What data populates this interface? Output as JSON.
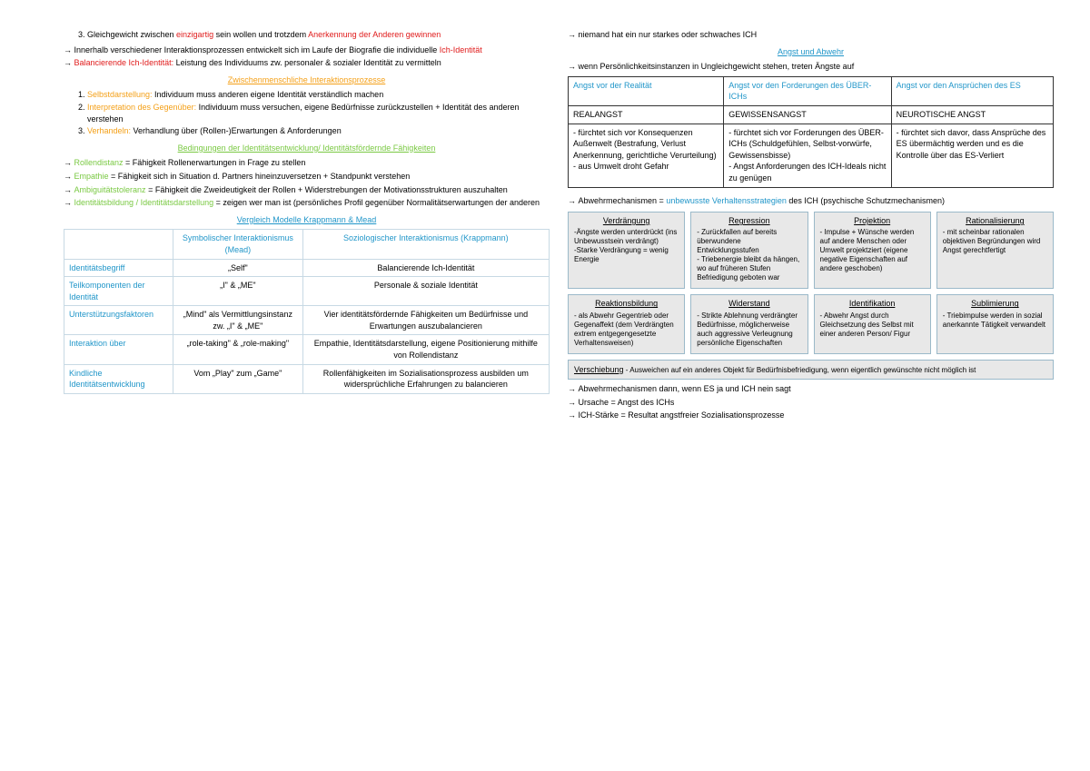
{
  "left": {
    "item3": {
      "pre": "Gleichgewicht zwischen ",
      "red1": "einzigartig",
      "mid": " sein wollen und trotzdem ",
      "red2": "Anerkennung der Anderen gewinnen"
    },
    "a1": {
      "pre": "Innerhalb verschiedener Interaktionsprozessen entwickelt sich im Laufe der Biografie die individuelle ",
      "red": "Ich-Identität"
    },
    "a2": {
      "red": "Balancierende Ich-Identität:",
      "rest": " Leistung des Individuums zw. personaler & sozialer Identität zu vermitteln"
    },
    "h1": "Zwischenmenschliche Interaktionsprozesse",
    "num": [
      {
        "o": "Selbstdarstellung:",
        "t": " Individuum muss anderen eigene Identität verständlich machen"
      },
      {
        "o": "Interpretation des Gegenüber:",
        "t": " Individuum muss versuchen, eigene Bedürfnisse zurückzustellen + Identität des anderen verstehen"
      },
      {
        "o": "Verhandeln:",
        "t": " Verhandlung über (Rollen-)Erwartungen & Anforderungen"
      }
    ],
    "h2": "Bedingungen der Identitätsentwicklung/ Identitätsfördernde Fähigkeiten",
    "bul": [
      {
        "g": "Rollendistanz",
        "t": " = Fähigkeit Rollenerwartungen in Frage zu stellen"
      },
      {
        "g": "Empathie",
        "t": " = Fähigkeit sich in Situation d. Partners hineinzuversetzen + Standpunkt verstehen"
      },
      {
        "g": "Ambiguitätstoleranz",
        "t": " = Fähigkeit die Zweideutigkeit der Rollen + Widerstrebungen der Motivationsstrukturen auszuhalten"
      },
      {
        "g": "Identitätsbildung / Identitätsdarstellung",
        "t": " = zeigen wer man ist (persönliches Profil gegenüber Normalitätserwartungen der anderen"
      }
    ],
    "h3": "Vergleich Modelle Krappmann & Mead",
    "table": {
      "head": [
        "",
        "Symbolischer Interaktionismus (Mead)",
        "Soziologischer Interaktionismus (Krappmann)"
      ],
      "rows": [
        [
          "Identitätsbegriff",
          "„Self\"",
          "Balancierende Ich-Identität"
        ],
        [
          "Teilkomponenten der Identität",
          "„I\" & „ME\"",
          "Personale & soziale Identität"
        ],
        [
          "Unterstützungsfaktoren",
          "„Mind\" als Vermittlungsinstanz zw. „I\" & „ME\"",
          "Vier identitätsfördernde Fähigkeiten um Bedürfnisse und Erwartungen auszubalancieren"
        ],
        [
          "Interaktion über",
          "„role-taking\" & „role-making\"",
          "Empathie, Identitätsdarstellung, eigene Positionierung mithilfe von Rollendistanz"
        ],
        [
          "Kindliche Identitätsentwicklung",
          "Vom „Play\" zum „Game\"",
          "Rollenfähigkeiten im Sozialisationsprozess ausbilden um widersprüchliche Erfahrungen zu balancieren"
        ]
      ]
    }
  },
  "right": {
    "a0": "niemand hat ein nur starkes oder schwaches ICH",
    "h1": "Angst und Abwehr",
    "a1": "wenn Persönlichkeitsinstanzen in Ungleichgewicht stehen, treten Ängste auf",
    "angst": {
      "head": [
        "Angst vor der Realität",
        "Angst vor den Forderungen des ÜBER-ICHs",
        "Angst vor den Ansprüchen des ES"
      ],
      "row1": [
        "REALANGST",
        "GEWISSENSANGST",
        "NEUROTISCHE ANGST"
      ],
      "row2": [
        "- fürchtet sich vor Konsequenzen Außenwelt (Bestrafung, Verlust Anerkennung, gerichtliche Verurteilung)\n- aus Umwelt droht Gefahr",
        "- fürchtet sich vor Forderungen des ÜBER-ICHs (Schuldgefühlen, Selbst-vorwürfe, Gewissensbisse)\n- Angst Anforderungen des ICH-Ideals nicht zu genügen",
        "- fürchtet sich davor, dass Ansprüche des ES übermächtig werden und es die Kontrolle über das ES-Verliert"
      ]
    },
    "abw": {
      "pre": "Abwehrmechanismen = ",
      "blue": "unbewusste Verhaltensstrategien",
      "post": " des ICH (psychische Schutzmechanismen)"
    },
    "mech": [
      {
        "t": "Verdrängung",
        "b": "-Ängste werden unterdrückt (ins Unbewusstsein verdrängt)\n-Starke Verdrängung = wenig Energie"
      },
      {
        "t": "Regression",
        "b": "- Zurückfallen auf bereits überwundene Entwicklungsstufen\n- Triebenergie bleibt da hängen, wo auf früheren Stufen Befriedigung geboten war"
      },
      {
        "t": "Projektion",
        "b": "- Impulse + Wünsche werden auf andere Menschen oder Umwelt projektziert (eigene negative Eigenschaften auf andere geschoben)"
      },
      {
        "t": "Rationalisierung",
        "b": "- mit scheinbar rationalen objektiven Begründungen wird Angst gerechtfertigt"
      },
      {
        "t": "Reaktionsbildung",
        "b": "- als Abwehr Gegentrieb oder Gegenaffekt (dem Verdrängten extrem entgegengesetzte Verhaltensweisen)"
      },
      {
        "t": "Widerstand",
        "b": "- Strikte Ablehnung verdrängter Bedürfnisse, möglicherweise auch aggressive Verleugnung persönliche Eigenschaften"
      },
      {
        "t": "Identifikation",
        "b": "- Abwehr Angst durch Gleichsetzung des Selbst mit einer anderen Person/ Figur"
      },
      {
        "t": "Sublimierung",
        "b": "- Triebimpulse werden in sozial anerkannte Tätigkeit verwandelt"
      }
    ],
    "versch": {
      "t": "Verschiebung",
      "b": " - Ausweichen auf ein anderes Objekt für Bedürfnisbefriedigung, wenn eigentlich gewünschte nicht möglich ist"
    },
    "foot": [
      "Abwehrmechanismen dann, wenn ES ja und ICH nein sagt",
      "Ursache = Angst des ICHs",
      "ICH-Stärke = Resultat angstfreier Sozialisationsprozesse"
    ]
  }
}
